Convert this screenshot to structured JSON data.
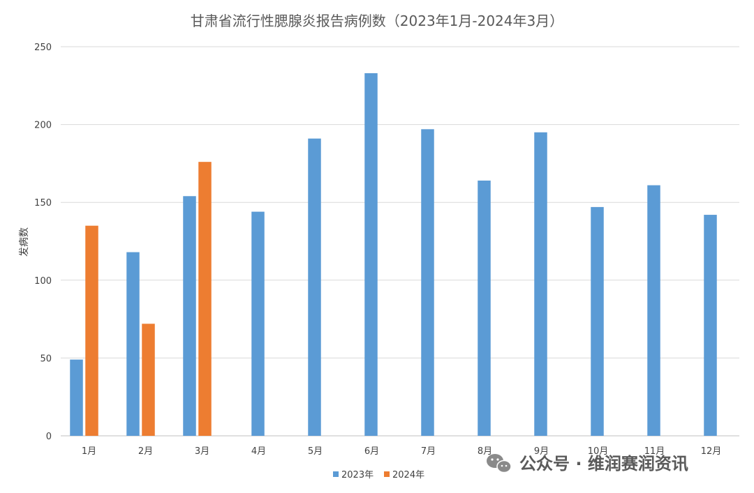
{
  "chart_data": {
    "type": "bar",
    "title": "甘肃省流行性腮腺炎报告病例数（2023年1月-2024年3月）",
    "xlabel": "",
    "ylabel": "发病数",
    "categories": [
      "1月",
      "2月",
      "3月",
      "4月",
      "5月",
      "6月",
      "7月",
      "8月",
      "9月",
      "10月",
      "11月",
      "12月"
    ],
    "ylim": [
      0,
      250
    ],
    "yticks": [
      0,
      50,
      100,
      150,
      200,
      250
    ],
    "grid": true,
    "legend_position": "bottom",
    "series": [
      {
        "name": "2023年",
        "color": "#5B9BD5",
        "values": [
          49,
          118,
          154,
          144,
          191,
          233,
          197,
          164,
          195,
          147,
          161,
          142
        ]
      },
      {
        "name": "2024年",
        "color": "#ED7D31",
        "values": [
          135,
          72,
          176,
          null,
          null,
          null,
          null,
          null,
          null,
          null,
          null,
          null
        ]
      }
    ]
  },
  "watermark": {
    "text": "公众号 · 维润赛润资讯",
    "icon": "wechat-icon"
  }
}
